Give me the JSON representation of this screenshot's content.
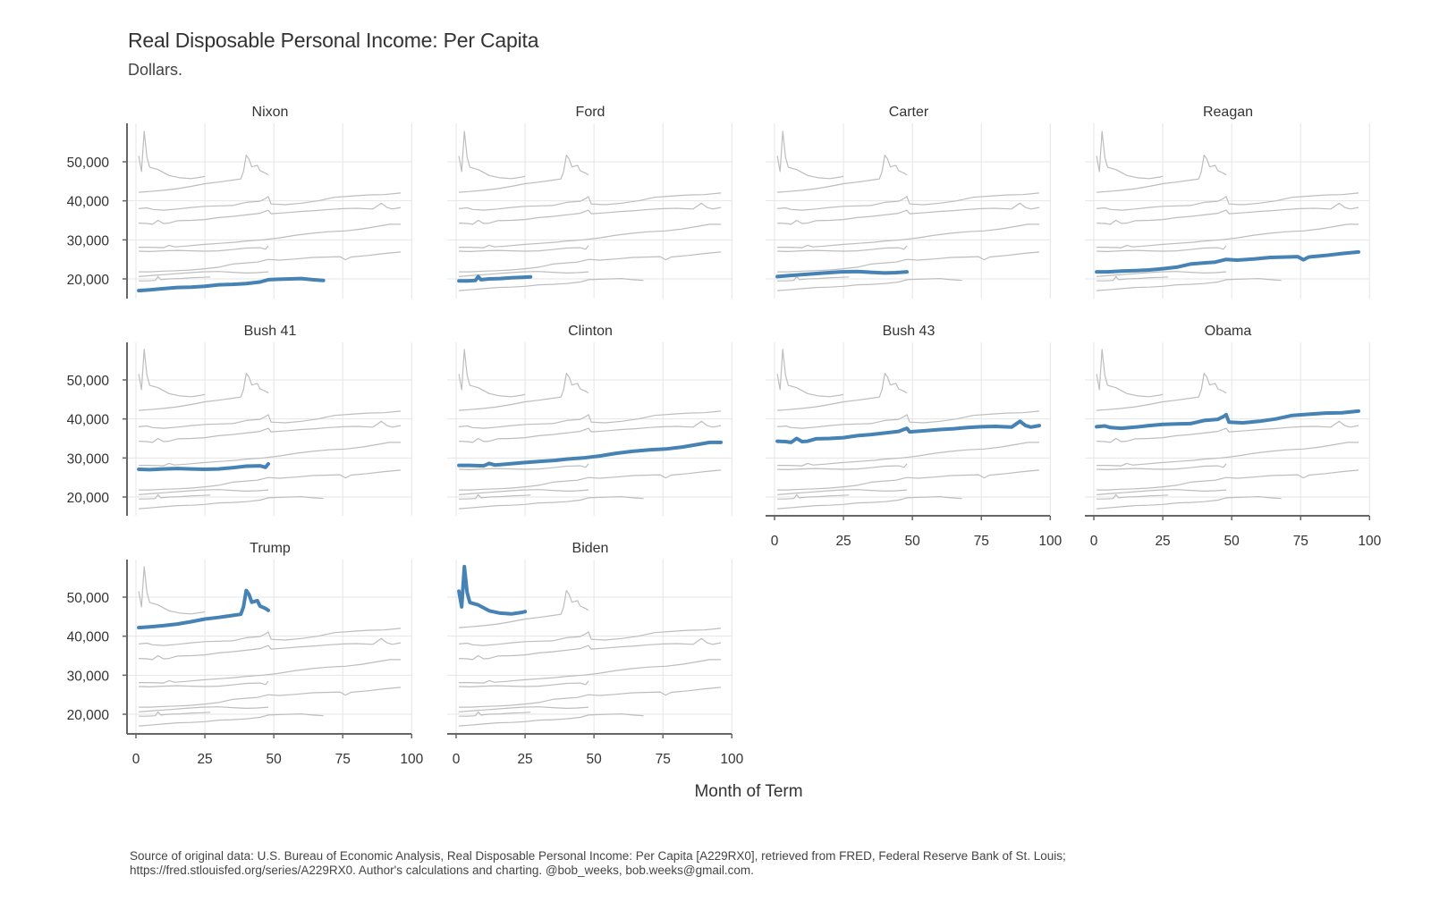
{
  "chart_data": {
    "type": "line",
    "title": "Real Disposable Personal Income: Per Capita",
    "subtitle": "Dollars.",
    "xlabel": "Month of Term",
    "ylabel": "",
    "caption_lines": [
      "Source of original data: U.S. Bureau of Economic Analysis, Real Disposable Personal Income: Per Capita [A229RX0], retrieved from FRED, Federal Reserve Bank of St. Louis;",
      "https://fred.stlouisfed.org/series/A229RX0. Author's calculations and charting. @bob_weeks, bob.weeks@gmail.com."
    ],
    "xlim": [
      0,
      100
    ],
    "ylim": [
      15000,
      59000
    ],
    "x_ticks": [
      0,
      25,
      50,
      75,
      100
    ],
    "x_tick_labels": [
      "0",
      "25",
      "50",
      "75",
      "100"
    ],
    "y_ticks": [
      20000,
      30000,
      40000,
      50000
    ],
    "y_tick_labels": [
      "20,000",
      "30,000",
      "40,000",
      "50,000"
    ],
    "grid": true,
    "highlight_color": "#4682b4",
    "background_line_color": "#bdbdbd",
    "series": [
      {
        "name": "Nixon",
        "points": [
          [
            1,
            17000
          ],
          [
            5,
            17200
          ],
          [
            10,
            17500
          ],
          [
            15,
            17800
          ],
          [
            20,
            17900
          ],
          [
            25,
            18100
          ],
          [
            30,
            18500
          ],
          [
            35,
            18600
          ],
          [
            40,
            18800
          ],
          [
            45,
            19200
          ],
          [
            48,
            19800
          ],
          [
            52,
            19900
          ],
          [
            56,
            20000
          ],
          [
            60,
            20100
          ],
          [
            64,
            19800
          ],
          [
            68,
            19600
          ]
        ]
      },
      {
        "name": "Ford",
        "points": [
          [
            1,
            19500
          ],
          [
            4,
            19500
          ],
          [
            7,
            19600
          ],
          [
            8,
            20600
          ],
          [
            9,
            19800
          ],
          [
            12,
            20000
          ],
          [
            16,
            20100
          ],
          [
            20,
            20300
          ],
          [
            24,
            20400
          ],
          [
            27,
            20500
          ]
        ]
      },
      {
        "name": "Carter",
        "points": [
          [
            1,
            20600
          ],
          [
            6,
            20900
          ],
          [
            12,
            21200
          ],
          [
            18,
            21500
          ],
          [
            24,
            21800
          ],
          [
            30,
            21900
          ],
          [
            35,
            21700
          ],
          [
            40,
            21500
          ],
          [
            44,
            21600
          ],
          [
            48,
            21800
          ]
        ]
      },
      {
        "name": "Reagan",
        "points": [
          [
            1,
            21800
          ],
          [
            5,
            21800
          ],
          [
            10,
            22000
          ],
          [
            15,
            22100
          ],
          [
            20,
            22300
          ],
          [
            25,
            22600
          ],
          [
            30,
            23000
          ],
          [
            35,
            23800
          ],
          [
            40,
            24100
          ],
          [
            44,
            24300
          ],
          [
            48,
            25000
          ],
          [
            52,
            24800
          ],
          [
            58,
            25100
          ],
          [
            64,
            25500
          ],
          [
            70,
            25600
          ],
          [
            74,
            25700
          ],
          [
            76,
            24900
          ],
          [
            78,
            25600
          ],
          [
            84,
            26000
          ],
          [
            90,
            26500
          ],
          [
            96,
            26900
          ]
        ]
      },
      {
        "name": "Bush 41",
        "points": [
          [
            1,
            27100
          ],
          [
            5,
            27000
          ],
          [
            10,
            27200
          ],
          [
            15,
            27300
          ],
          [
            20,
            27200
          ],
          [
            25,
            27100
          ],
          [
            30,
            27200
          ],
          [
            35,
            27500
          ],
          [
            40,
            27900
          ],
          [
            45,
            28000
          ],
          [
            47,
            27600
          ],
          [
            48,
            28500
          ]
        ]
      },
      {
        "name": "Clinton",
        "points": [
          [
            1,
            28100
          ],
          [
            5,
            28100
          ],
          [
            10,
            28000
          ],
          [
            12,
            28600
          ],
          [
            14,
            28200
          ],
          [
            18,
            28400
          ],
          [
            24,
            28800
          ],
          [
            30,
            29100
          ],
          [
            36,
            29400
          ],
          [
            40,
            29700
          ],
          [
            46,
            30000
          ],
          [
            52,
            30500
          ],
          [
            58,
            31200
          ],
          [
            64,
            31700
          ],
          [
            70,
            32100
          ],
          [
            76,
            32300
          ],
          [
            82,
            32800
          ],
          [
            88,
            33500
          ],
          [
            92,
            34000
          ],
          [
            96,
            34000
          ]
        ]
      },
      {
        "name": "Bush 43",
        "points": [
          [
            1,
            34300
          ],
          [
            4,
            34200
          ],
          [
            6,
            34000
          ],
          [
            8,
            35000
          ],
          [
            10,
            34200
          ],
          [
            12,
            34300
          ],
          [
            15,
            34900
          ],
          [
            20,
            35000
          ],
          [
            25,
            35200
          ],
          [
            30,
            35700
          ],
          [
            35,
            36000
          ],
          [
            40,
            36400
          ],
          [
            45,
            36800
          ],
          [
            48,
            37600
          ],
          [
            49,
            36700
          ],
          [
            55,
            37000
          ],
          [
            60,
            37300
          ],
          [
            65,
            37500
          ],
          [
            70,
            37800
          ],
          [
            75,
            38000
          ],
          [
            80,
            38100
          ],
          [
            86,
            37900
          ],
          [
            89,
            39400
          ],
          [
            91,
            38300
          ],
          [
            93,
            37900
          ],
          [
            96,
            38300
          ]
        ]
      },
      {
        "name": "Obama",
        "points": [
          [
            1,
            38000
          ],
          [
            4,
            38200
          ],
          [
            6,
            37800
          ],
          [
            10,
            37600
          ],
          [
            15,
            37900
          ],
          [
            20,
            38300
          ],
          [
            25,
            38600
          ],
          [
            30,
            38700
          ],
          [
            35,
            38800
          ],
          [
            40,
            39600
          ],
          [
            45,
            39900
          ],
          [
            47,
            40600
          ],
          [
            48,
            41100
          ],
          [
            49,
            39200
          ],
          [
            54,
            39000
          ],
          [
            60,
            39400
          ],
          [
            66,
            40000
          ],
          [
            72,
            40900
          ],
          [
            78,
            41200
          ],
          [
            84,
            41500
          ],
          [
            90,
            41600
          ],
          [
            96,
            42000
          ]
        ]
      },
      {
        "name": "Trump",
        "points": [
          [
            1,
            42200
          ],
          [
            5,
            42400
          ],
          [
            10,
            42700
          ],
          [
            15,
            43100
          ],
          [
            20,
            43700
          ],
          [
            25,
            44400
          ],
          [
            30,
            44800
          ],
          [
            35,
            45300
          ],
          [
            38,
            45600
          ],
          [
            39,
            47500
          ],
          [
            40,
            51700
          ],
          [
            41,
            50700
          ],
          [
            42,
            48700
          ],
          [
            44,
            49100
          ],
          [
            45,
            47700
          ],
          [
            47,
            47100
          ],
          [
            48,
            46600
          ]
        ]
      },
      {
        "name": "Biden",
        "points": [
          [
            1,
            51500
          ],
          [
            2,
            47500
          ],
          [
            3,
            57800
          ],
          [
            4,
            51200
          ],
          [
            5,
            48600
          ],
          [
            8,
            48000
          ],
          [
            12,
            46500
          ],
          [
            16,
            45900
          ],
          [
            20,
            45700
          ],
          [
            24,
            46100
          ],
          [
            25,
            46300
          ]
        ]
      }
    ]
  }
}
